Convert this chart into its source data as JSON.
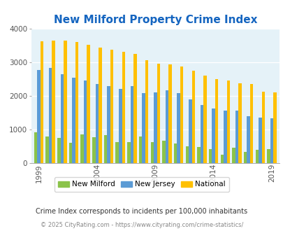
{
  "title": "New Milford Property Crime Index",
  "years": [
    1999,
    2000,
    2001,
    2002,
    2003,
    2004,
    2005,
    2006,
    2007,
    2008,
    2009,
    2010,
    2011,
    2012,
    2013,
    2014,
    2015,
    2016,
    2017,
    2018,
    2019,
    2020
  ],
  "new_milford": [
    920,
    780,
    750,
    600,
    840,
    770,
    820,
    630,
    620,
    780,
    620,
    660,
    580,
    500,
    470,
    420,
    250,
    450,
    330,
    400,
    410,
    0
  ],
  "new_jersey": [
    2780,
    2840,
    2650,
    2550,
    2460,
    2360,
    2290,
    2210,
    2300,
    2090,
    2100,
    2160,
    2080,
    1900,
    1730,
    1620,
    1560,
    1550,
    1400,
    1360,
    1340,
    0
  ],
  "national": [
    3620,
    3650,
    3640,
    3600,
    3520,
    3450,
    3380,
    3310,
    3250,
    3060,
    2970,
    2940,
    2880,
    2760,
    2600,
    2510,
    2460,
    2380,
    2360,
    2120,
    2100,
    0
  ],
  "bg_color": "#e5f2f8",
  "color_nm": "#8bc34a",
  "color_nj": "#5b9bd5",
  "color_nat": "#ffc000",
  "title_fontsize": 11,
  "note": "Crime Index corresponds to incidents per 100,000 inhabitants",
  "footer": "© 2025 CityRating.com - https://www.cityrating.com/crime-statistics/",
  "ylim": [
    0,
    4000
  ],
  "yticks": [
    0,
    1000,
    2000,
    3000,
    4000
  ],
  "xtick_years": [
    1999,
    2004,
    2009,
    2014,
    2019
  ]
}
